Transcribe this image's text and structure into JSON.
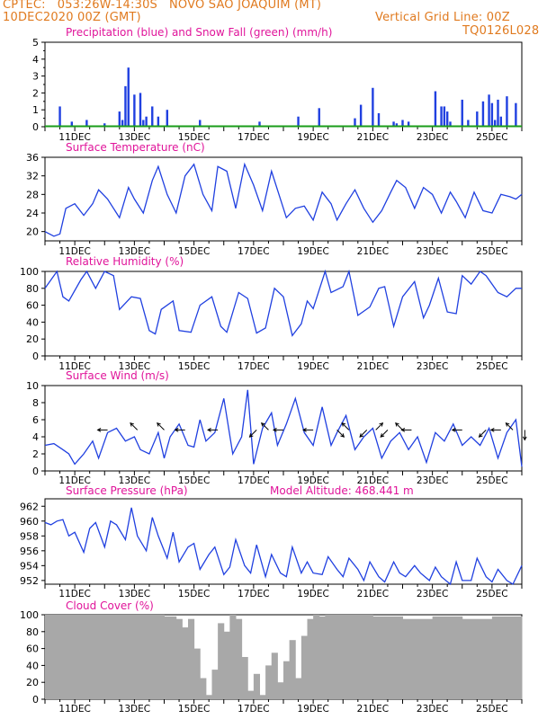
{
  "header": {
    "line1_left": "CPTEC:   053:26W-14:30S   NOVO SAO JOAQUIM (MT)",
    "line2_left": "10DEC2020 00Z (GMT)",
    "line2_right": "Vertical Grid Line: 00Z",
    "line3_right": "TQ0126L028",
    "orange": "#e07a1f",
    "magenta": "#e0149a",
    "blue": "#2040e0",
    "green": "#1a9c1a"
  },
  "x_ticks": [
    "11DEC",
    "13DEC",
    "15DEC",
    "17DEC",
    "19DEC",
    "21DEC",
    "23DEC",
    "25DEC"
  ],
  "chart_data": [
    {
      "id": "precip",
      "type": "bar",
      "title": "Precipitation (blue) and Snow Fall (green) (mm/h)",
      "ylim": [
        0,
        5
      ],
      "yticks": [
        0,
        1,
        2,
        3,
        4,
        5
      ],
      "series": [
        {
          "name": "Precipitation",
          "color": "#2040e0",
          "x": [
            0.5,
            0.9,
            1.4,
            2.0,
            2.5,
            2.6,
            2.7,
            2.8,
            3.0,
            3.2,
            3.3,
            3.4,
            3.6,
            3.8,
            4.1,
            5.2,
            7.2,
            8.5,
            9.2,
            10.4,
            10.6,
            11.0,
            11.2,
            11.7,
            11.8,
            12.0,
            12.2,
            13.1,
            13.3,
            13.4,
            13.5,
            13.6,
            14.0,
            14.2,
            14.5,
            14.7,
            14.9,
            15.0,
            15.1,
            15.2,
            15.3,
            15.5,
            15.8
          ],
          "values": [
            1.2,
            0.3,
            0.4,
            0.2,
            0.9,
            0.4,
            2.4,
            3.5,
            1.9,
            2.0,
            0.4,
            0.6,
            1.2,
            0.6,
            1.0,
            0.4,
            0.3,
            0.6,
            1.1,
            0.5,
            1.3,
            2.3,
            0.8,
            0.3,
            0.2,
            0.4,
            0.3,
            2.1,
            1.2,
            1.2,
            0.9,
            0.3,
            1.6,
            0.4,
            0.9,
            1.5,
            1.9,
            1.4,
            0.4,
            1.6,
            0.6,
            1.8,
            1.4
          ]
        },
        {
          "name": "Snow Fall",
          "color": "#1a9c1a",
          "values": [
            0
          ]
        }
      ]
    },
    {
      "id": "temp",
      "type": "line",
      "title": "Surface Temperature (nC)",
      "ylim": [
        18,
        36
      ],
      "yticks": [
        20,
        24,
        28,
        32,
        36
      ],
      "series": [
        {
          "name": "Temperature",
          "color": "#2040e0",
          "x": [
            0.0,
            0.3,
            0.5,
            0.7,
            1.0,
            1.3,
            1.6,
            1.8,
            2.1,
            2.5,
            2.8,
            3.0,
            3.3,
            3.6,
            3.8,
            4.1,
            4.4,
            4.7,
            5.0,
            5.3,
            5.6,
            5.8,
            6.1,
            6.4,
            6.7,
            7.0,
            7.3,
            7.6,
            7.8,
            8.1,
            8.4,
            8.7,
            9.0,
            9.3,
            9.6,
            9.8,
            10.1,
            10.4,
            10.7,
            11.0,
            11.3,
            11.6,
            11.8,
            12.1,
            12.4,
            12.7,
            13.0,
            13.3,
            13.6,
            13.8,
            14.1,
            14.4,
            14.7,
            15.0,
            15.3,
            15.6,
            15.8,
            16.0
          ],
          "values": [
            20.0,
            19.0,
            19.5,
            25.0,
            26.0,
            23.5,
            26.0,
            29.0,
            27.0,
            23.0,
            29.5,
            27.0,
            24.0,
            31.0,
            34.0,
            28.0,
            24.0,
            32.0,
            34.5,
            28.0,
            24.5,
            34.0,
            33.0,
            25.0,
            34.5,
            30.0,
            24.5,
            33.0,
            29.0,
            23.0,
            25.0,
            25.5,
            22.5,
            28.5,
            26.0,
            22.5,
            26.0,
            29.0,
            25.0,
            22.0,
            24.5,
            28.5,
            31.0,
            29.5,
            25.0,
            29.5,
            28.0,
            24.0,
            28.5,
            26.5,
            23.0,
            28.5,
            24.5,
            24.0,
            28.0,
            27.5,
            27.0,
            28.0
          ]
        }
      ]
    },
    {
      "id": "rh",
      "type": "line",
      "title": "Relative Humidity (%)",
      "ylim": [
        0,
        100
      ],
      "yticks": [
        0,
        20,
        40,
        60,
        80,
        100
      ],
      "series": [
        {
          "name": "Relative Humidity",
          "color": "#2040e0",
          "x": [
            0.0,
            0.4,
            0.6,
            0.8,
            1.2,
            1.4,
            1.7,
            2.0,
            2.3,
            2.5,
            2.9,
            3.2,
            3.5,
            3.7,
            3.9,
            4.3,
            4.5,
            4.9,
            5.2,
            5.6,
            5.9,
            6.1,
            6.5,
            6.8,
            7.1,
            7.4,
            7.7,
            8.0,
            8.3,
            8.6,
            8.8,
            9.0,
            9.4,
            9.6,
            10.0,
            10.2,
            10.5,
            10.9,
            11.2,
            11.4,
            11.7,
            12.0,
            12.4,
            12.7,
            12.9,
            13.2,
            13.5,
            13.8,
            14.0,
            14.3,
            14.6,
            14.8,
            15.2,
            15.5,
            15.8,
            16.0
          ],
          "values": [
            80.0,
            100.0,
            70.0,
            65.0,
            90.0,
            100.0,
            80.0,
            100.0,
            95.0,
            55.0,
            70.0,
            68.0,
            30.0,
            26.0,
            55.0,
            65.0,
            30.0,
            28.0,
            60.0,
            70.0,
            35.0,
            28.0,
            75.0,
            68.0,
            27.0,
            33.0,
            80.0,
            70.0,
            24.0,
            38.0,
            65.0,
            56.0,
            100.0,
            75.0,
            82.0,
            100.0,
            48.0,
            58.0,
            80.0,
            82.0,
            35.0,
            70.0,
            88.0,
            45.0,
            60.0,
            92.0,
            52.0,
            50.0,
            95.0,
            85.0,
            100.0,
            95.0,
            75.0,
            70.0,
            80.0,
            80.0
          ]
        }
      ]
    },
    {
      "id": "wind",
      "type": "line",
      "title": "Surface Wind (m/s)",
      "ylim": [
        0,
        10
      ],
      "yticks": [
        0,
        2,
        4,
        6,
        8,
        10
      ],
      "series": [
        {
          "name": "Wind Speed",
          "color": "#2040e0",
          "x": [
            0.0,
            0.3,
            0.6,
            0.8,
            1.0,
            1.3,
            1.6,
            1.8,
            2.1,
            2.4,
            2.7,
            3.0,
            3.2,
            3.5,
            3.8,
            4.0,
            4.2,
            4.5,
            4.8,
            5.0,
            5.2,
            5.4,
            5.7,
            6.0,
            6.3,
            6.6,
            6.8,
            7.0,
            7.3,
            7.6,
            7.8,
            8.1,
            8.4,
            8.7,
            9.0,
            9.3,
            9.6,
            9.8,
            10.1,
            10.4,
            10.7,
            11.0,
            11.3,
            11.6,
            11.9,
            12.2,
            12.5,
            12.8,
            13.1,
            13.4,
            13.7,
            14.0,
            14.3,
            14.6,
            14.9,
            15.2,
            15.5,
            15.8,
            16.0
          ],
          "values": [
            3.0,
            3.2,
            2.5,
            2.0,
            0.8,
            2.0,
            3.5,
            1.5,
            4.5,
            5.0,
            3.5,
            4.0,
            2.5,
            2.0,
            4.5,
            1.5,
            4.0,
            5.5,
            3.0,
            2.8,
            6.0,
            3.5,
            4.5,
            8.5,
            2.0,
            4.0,
            9.5,
            0.8,
            5.0,
            6.8,
            3.0,
            5.5,
            8.5,
            4.5,
            3.0,
            7.5,
            3.0,
            4.5,
            6.5,
            2.5,
            4.0,
            5.0,
            1.5,
            3.5,
            4.5,
            2.5,
            4.0,
            1.0,
            4.5,
            3.5,
            5.5,
            3.0,
            4.0,
            3.0,
            5.0,
            1.5,
            4.5,
            6.0,
            0.5
          ]
        }
      ]
    },
    {
      "id": "pres",
      "type": "line",
      "title": "Surface Pressure (hPa)",
      "annotation": "Model Altitude: 468.441  m",
      "ylim": [
        951.5,
        963
      ],
      "yticks": [
        952,
        954,
        956,
        958,
        960,
        962
      ],
      "series": [
        {
          "name": "Pressure",
          "color": "#2040e0",
          "x": [
            0.0,
            0.2,
            0.4,
            0.6,
            0.8,
            1.0,
            1.3,
            1.5,
            1.7,
            2.0,
            2.2,
            2.4,
            2.7,
            2.9,
            3.1,
            3.4,
            3.6,
            3.8,
            4.1,
            4.3,
            4.5,
            4.8,
            5.0,
            5.2,
            5.5,
            5.7,
            6.0,
            6.2,
            6.4,
            6.7,
            6.9,
            7.1,
            7.4,
            7.6,
            7.9,
            8.1,
            8.3,
            8.6,
            8.8,
            9.0,
            9.3,
            9.5,
            9.8,
            10.0,
            10.2,
            10.5,
            10.7,
            10.9,
            11.2,
            11.4,
            11.7,
            11.9,
            12.1,
            12.4,
            12.6,
            12.9,
            13.1,
            13.3,
            13.6,
            13.8,
            14.0,
            14.3,
            14.5,
            14.8,
            15.0,
            15.2,
            15.5,
            15.7,
            16.0
          ],
          "values": [
            959.8,
            959.5,
            960.0,
            960.2,
            958.0,
            958.5,
            955.8,
            959.0,
            959.8,
            956.5,
            960.0,
            959.5,
            957.5,
            961.8,
            958.0,
            956.0,
            960.5,
            958.0,
            955.0,
            958.5,
            954.5,
            956.5,
            957.0,
            953.5,
            955.5,
            956.5,
            952.8,
            953.8,
            957.5,
            954.0,
            953.0,
            956.8,
            952.5,
            955.5,
            953.0,
            952.5,
            956.5,
            953.0,
            954.5,
            953.0,
            952.8,
            955.2,
            953.5,
            952.5,
            955.0,
            953.5,
            952.0,
            954.5,
            952.5,
            951.8,
            954.5,
            953.0,
            952.5,
            954.0,
            953.0,
            952.0,
            953.8,
            952.5,
            951.5,
            954.5,
            952.0,
            952.0,
            955.0,
            952.5,
            951.8,
            953.5,
            952.0,
            951.5,
            954.0
          ]
        }
      ]
    },
    {
      "id": "cloud",
      "type": "bar",
      "title": "Cloud Cover (%)",
      "ylim": [
        0,
        100
      ],
      "yticks": [
        0,
        20,
        40,
        60,
        80,
        100
      ],
      "series": [
        {
          "name": "Cloud Cover",
          "color": "#a8a8a8",
          "x": [
            0.0,
            1.0,
            2.0,
            3.0,
            4.0,
            4.4,
            4.6,
            4.8,
            5.0,
            5.2,
            5.4,
            5.6,
            5.8,
            6.0,
            6.2,
            6.4,
            6.6,
            6.8,
            7.0,
            7.2,
            7.4,
            7.6,
            7.8,
            8.0,
            8.2,
            8.4,
            8.6,
            8.8,
            9.0,
            9.2,
            9.4,
            10.0,
            11.0,
            12.0,
            13.0,
            14.0,
            15.0,
            16.0
          ],
          "values": [
            100.0,
            100.0,
            100.0,
            100.0,
            98.0,
            95.0,
            85.0,
            95.0,
            60.0,
            25.0,
            5.0,
            35.0,
            90.0,
            80.0,
            100.0,
            95.0,
            50.0,
            10.0,
            30.0,
            5.0,
            40.0,
            55.0,
            20.0,
            45.0,
            70.0,
            25.0,
            75.0,
            95.0,
            100.0,
            98.0,
            100.0,
            100.0,
            98.0,
            95.0,
            98.0,
            95.0,
            98.0,
            95.0
          ]
        }
      ]
    }
  ]
}
